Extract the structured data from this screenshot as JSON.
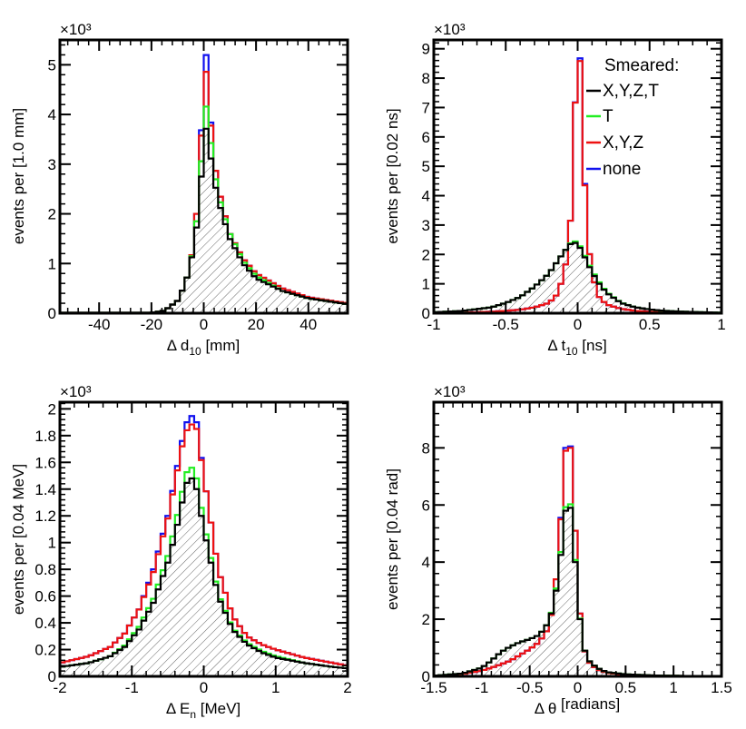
{
  "colors": {
    "black": "#000000",
    "green": "#22ee22",
    "red": "#ee1111",
    "blue": "#1111ee",
    "hatch": "#555555"
  },
  "legend": {
    "title": "Smeared:",
    "entries": [
      {
        "label": "X,Y,Z,T",
        "color": "#000000"
      },
      {
        "label": "T",
        "color": "#22ee22"
      },
      {
        "label": "X,Y,Z",
        "color": "#ee1111"
      },
      {
        "label": "none",
        "color": "#1111ee"
      }
    ]
  },
  "chart_data": [
    {
      "type": "histogram",
      "ylabel": "events per [1.0 mm]",
      "xlabel_pre": "Δ d",
      "xlabel_sub": "10",
      "xlabel_post": " [mm]",
      "multiplier": "×10³",
      "xlim": [
        -55,
        55
      ],
      "ylim": [
        0,
        5.5
      ],
      "xticks": [
        -40,
        -20,
        0,
        20,
        40
      ],
      "xtick_labels": [
        "-40",
        "-20",
        "0",
        "20",
        "40"
      ],
      "yticks": [
        0,
        1,
        2,
        3,
        4,
        5
      ],
      "ytick_labels": [
        "0",
        "1",
        "2",
        "3",
        "4",
        "5"
      ],
      "x": [
        -20,
        -15,
        -10,
        -7,
        -5,
        -3,
        -2,
        -1,
        0,
        1,
        2,
        3,
        4,
        5,
        7,
        10,
        15,
        20,
        30,
        40,
        55
      ],
      "series": [
        {
          "name": "X,Y,Z,T",
          "color": "#000000",
          "values": [
            0.01,
            0.05,
            0.25,
            0.6,
            1.0,
            1.6,
            2.1,
            2.7,
            3.3,
            3.75,
            3.45,
            3.0,
            2.7,
            2.4,
            2.0,
            1.5,
            1.0,
            0.7,
            0.45,
            0.3,
            0.18
          ]
        },
        {
          "name": "T",
          "color": "#22ee22",
          "values": [
            0.01,
            0.05,
            0.25,
            0.6,
            1.0,
            1.7,
            2.3,
            3.0,
            3.7,
            4.2,
            3.8,
            3.3,
            2.9,
            2.55,
            2.1,
            1.6,
            1.05,
            0.75,
            0.45,
            0.3,
            0.18
          ]
        },
        {
          "name": "X,Y,Z",
          "color": "#ee1111",
          "values": [
            0.01,
            0.05,
            0.25,
            0.6,
            1.0,
            1.8,
            2.6,
            3.5,
            4.4,
            4.9,
            4.3,
            3.6,
            3.1,
            2.7,
            2.2,
            1.6,
            1.1,
            0.8,
            0.5,
            0.32,
            0.2
          ]
        },
        {
          "name": "none",
          "color": "#1111ee",
          "values": [
            0.01,
            0.05,
            0.25,
            0.6,
            1.0,
            1.8,
            2.6,
            3.6,
            4.6,
            5.25,
            4.4,
            3.65,
            3.1,
            2.7,
            2.2,
            1.6,
            1.1,
            0.8,
            0.5,
            0.32,
            0.2
          ]
        }
      ]
    },
    {
      "type": "histogram",
      "ylabel": "events per [0.02 ns]",
      "xlabel_pre": "Δ t",
      "xlabel_sub": "10",
      "xlabel_post": " [ns]",
      "multiplier": "×10³",
      "xlim": [
        -1,
        1
      ],
      "ylim": [
        0,
        9.3
      ],
      "xticks": [
        -1,
        -0.5,
        0,
        0.5,
        1
      ],
      "xtick_labels": [
        "-1",
        "-0.5",
        "0",
        "0.5",
        "1"
      ],
      "yticks": [
        0,
        1,
        2,
        3,
        4,
        5,
        6,
        7,
        8,
        9
      ],
      "ytick_labels": [
        "0",
        "1",
        "2",
        "3",
        "4",
        "5",
        "6",
        "7",
        "8",
        "9"
      ],
      "x": [
        -1,
        -0.8,
        -0.6,
        -0.5,
        -0.4,
        -0.3,
        -0.2,
        -0.15,
        -0.1,
        -0.06,
        -0.04,
        -0.02,
        0,
        0.02,
        0.04,
        0.06,
        0.1,
        0.15,
        0.2,
        0.3,
        0.4,
        0.5,
        0.6,
        0.8,
        1
      ],
      "series": [
        {
          "name": "X,Y,Z,T",
          "color": "#000000",
          "values": [
            0.03,
            0.08,
            0.2,
            0.35,
            0.55,
            0.9,
            1.35,
            1.7,
            2.05,
            2.3,
            2.4,
            2.4,
            2.35,
            2.2,
            2.0,
            1.8,
            1.4,
            1.0,
            0.7,
            0.35,
            0.2,
            0.13,
            0.08,
            0.04,
            0.02
          ]
        },
        {
          "name": "T",
          "color": "#22ee22",
          "values": [
            0.03,
            0.08,
            0.2,
            0.35,
            0.55,
            0.9,
            1.35,
            1.7,
            2.05,
            2.3,
            2.45,
            2.45,
            2.4,
            2.25,
            2.05,
            1.85,
            1.45,
            1.05,
            0.72,
            0.36,
            0.2,
            0.13,
            0.08,
            0.04,
            0.02
          ]
        },
        {
          "name": "X,Y,Z",
          "color": "#ee1111",
          "values": [
            0.01,
            0.02,
            0.05,
            0.08,
            0.12,
            0.2,
            0.35,
            0.6,
            1.2,
            2.3,
            4.0,
            6.8,
            9.0,
            8.5,
            5.7,
            3.0,
            1.3,
            0.55,
            0.3,
            0.15,
            0.08,
            0.05,
            0.03,
            0.02,
            0.01
          ]
        },
        {
          "name": "none",
          "color": "#1111ee",
          "values": [
            0.01,
            0.02,
            0.05,
            0.08,
            0.12,
            0.2,
            0.35,
            0.6,
            1.2,
            2.3,
            4.0,
            6.8,
            9.05,
            8.6,
            5.8,
            3.0,
            1.3,
            0.55,
            0.3,
            0.15,
            0.08,
            0.05,
            0.03,
            0.02,
            0.01
          ]
        }
      ]
    },
    {
      "type": "histogram",
      "ylabel": "events per [0.04 MeV]",
      "xlabel_pre": "Δ E",
      "xlabel_sub": "n",
      "xlabel_post": " [MeV]",
      "multiplier": "×10³",
      "xlim": [
        -2,
        2
      ],
      "ylim": [
        0,
        2.05
      ],
      "xticks": [
        -2,
        -1,
        0,
        1,
        2
      ],
      "xtick_labels": [
        "-2",
        "-1",
        "0",
        "1",
        "2"
      ],
      "yticks": [
        0,
        0.2,
        0.4,
        0.6,
        0.8,
        1,
        1.2,
        1.4,
        1.6,
        1.8,
        2
      ],
      "ytick_labels": [
        "0",
        "0.2",
        "0.4",
        "0.6",
        "0.8",
        "1",
        "1.2",
        "1.4",
        "1.6",
        "1.8",
        "2"
      ],
      "x": [
        -2,
        -1.6,
        -1.3,
        -1.1,
        -0.9,
        -0.7,
        -0.5,
        -0.4,
        -0.3,
        -0.2,
        -0.1,
        0,
        0.2,
        0.4,
        0.6,
        0.8,
        1,
        1.4,
        1.8,
        2
      ],
      "series": [
        {
          "name": "X,Y,Z,T",
          "color": "#000000",
          "values": [
            0.07,
            0.1,
            0.15,
            0.22,
            0.35,
            0.55,
            0.85,
            1.05,
            1.3,
            1.52,
            1.4,
            1.1,
            0.6,
            0.35,
            0.24,
            0.18,
            0.14,
            0.1,
            0.07,
            0.06
          ]
        },
        {
          "name": "T",
          "color": "#22ee22",
          "values": [
            0.07,
            0.1,
            0.15,
            0.23,
            0.37,
            0.58,
            0.9,
            1.12,
            1.38,
            1.6,
            1.48,
            1.15,
            0.62,
            0.36,
            0.25,
            0.19,
            0.15,
            0.1,
            0.07,
            0.06
          ]
        },
        {
          "name": "X,Y,Z",
          "color": "#ee1111",
          "values": [
            0.1,
            0.15,
            0.22,
            0.32,
            0.5,
            0.78,
            1.18,
            1.45,
            1.72,
            1.9,
            1.85,
            1.5,
            0.8,
            0.45,
            0.3,
            0.24,
            0.2,
            0.14,
            0.1,
            0.08
          ]
        },
        {
          "name": "none",
          "color": "#1111ee",
          "values": [
            0.1,
            0.15,
            0.22,
            0.32,
            0.5,
            0.8,
            1.2,
            1.48,
            1.76,
            1.97,
            1.9,
            1.5,
            0.8,
            0.45,
            0.3,
            0.24,
            0.2,
            0.14,
            0.1,
            0.08
          ]
        }
      ]
    },
    {
      "type": "histogram",
      "ylabel": "events per [0.04 rad]",
      "xlabel_pre": "Δ θ",
      "xlabel_sub": "",
      "xlabel_post": " [radians]",
      "multiplier": "×10³",
      "xlim": [
        -1.5,
        1.5
      ],
      "ylim": [
        0,
        9.6
      ],
      "xticks": [
        -1.5,
        -1,
        -0.5,
        0,
        0.5,
        1,
        1.5
      ],
      "xtick_labels": [
        "-1.5",
        "-1",
        "-0.5",
        "0",
        "0.5",
        "1",
        "1.5"
      ],
      "yticks": [
        0,
        2,
        4,
        6,
        8
      ],
      "ytick_labels": [
        "0",
        "2",
        "4",
        "6",
        "8"
      ],
      "x": [
        -1.5,
        -1.2,
        -1,
        -0.9,
        -0.8,
        -0.7,
        -0.6,
        -0.5,
        -0.4,
        -0.3,
        -0.25,
        -0.2,
        -0.15,
        -0.1,
        -0.05,
        0,
        0.05,
        0.1,
        0.2,
        0.3,
        0.5,
        0.8,
        1.2,
        1.5
      ],
      "series": [
        {
          "name": "X,Y,Z,T",
          "color": "#000000",
          "values": [
            0.02,
            0.1,
            0.3,
            0.55,
            0.85,
            1.05,
            1.2,
            1.3,
            1.45,
            1.9,
            2.5,
            3.5,
            5.0,
            6.6,
            5.2,
            2.8,
            1.2,
            0.6,
            0.3,
            0.15,
            0.07,
            0.03,
            0.01,
            0.0
          ]
        },
        {
          "name": "T",
          "color": "#22ee22",
          "values": [
            0.02,
            0.1,
            0.3,
            0.55,
            0.85,
            1.05,
            1.2,
            1.3,
            1.45,
            1.9,
            2.55,
            3.6,
            5.1,
            6.75,
            5.3,
            2.85,
            1.2,
            0.6,
            0.3,
            0.15,
            0.07,
            0.03,
            0.01,
            0.0
          ]
        },
        {
          "name": "X,Y,Z",
          "color": "#ee1111",
          "values": [
            0.02,
            0.08,
            0.2,
            0.3,
            0.42,
            0.55,
            0.75,
            0.95,
            1.2,
            1.7,
            2.6,
            4.2,
            6.8,
            9.0,
            7.0,
            3.2,
            1.2,
            0.55,
            0.25,
            0.12,
            0.06,
            0.03,
            0.01,
            0.0
          ]
        },
        {
          "name": "none",
          "color": "#1111ee",
          "values": [
            0.02,
            0.08,
            0.2,
            0.3,
            0.42,
            0.55,
            0.75,
            0.95,
            1.2,
            1.7,
            2.6,
            4.2,
            6.9,
            9.1,
            7.0,
            3.2,
            1.2,
            0.55,
            0.25,
            0.12,
            0.06,
            0.03,
            0.01,
            0.0
          ]
        }
      ]
    }
  ]
}
